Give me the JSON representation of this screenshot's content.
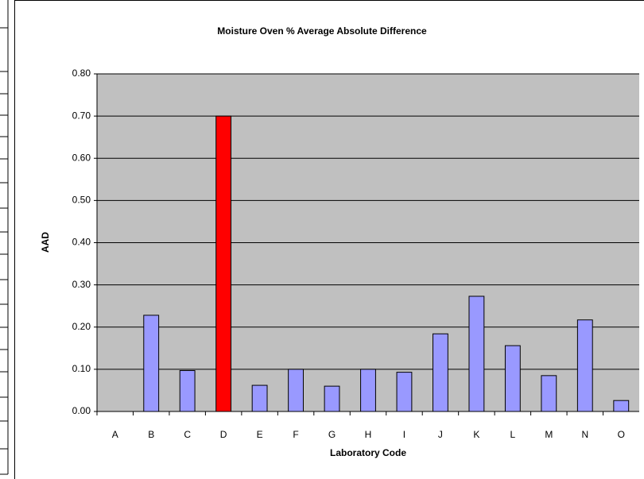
{
  "chart_data": {
    "type": "bar",
    "title": "Moisture Oven % Average Absolute Difference",
    "x_label": "Laboratory Code",
    "y_label": "AAD",
    "categories": [
      "A",
      "B",
      "C",
      "D",
      "E",
      "F",
      "G",
      "H",
      "I",
      "J",
      "K",
      "L",
      "M",
      "N",
      "O"
    ],
    "values": [
      0,
      0.228,
      0.097,
      0.7,
      0.062,
      0.1,
      0.06,
      0.1,
      0.093,
      0.184,
      0.273,
      0.156,
      0.085,
      0.217,
      0.026
    ],
    "colors": [
      "#9999ff",
      "#9999ff",
      "#9999ff",
      "#ff0000",
      "#9999ff",
      "#9999ff",
      "#9999ff",
      "#9999ff",
      "#9999ff",
      "#9999ff",
      "#9999ff",
      "#9999ff",
      "#9999ff",
      "#9999ff",
      "#9999ff"
    ],
    "ylim": [
      0,
      0.8
    ],
    "yticks": [
      {
        "value": 0,
        "label": "0.00"
      },
      {
        "value": 0.1,
        "label": "0.10"
      },
      {
        "value": 0.2,
        "label": "0.20"
      },
      {
        "value": 0.3,
        "label": "0.30"
      },
      {
        "value": 0.4,
        "label": "0.40"
      },
      {
        "value": 0.5,
        "label": "0.50"
      },
      {
        "value": 0.6,
        "label": "0.60"
      },
      {
        "value": 0.7,
        "label": "0.70"
      },
      {
        "value": 0.8,
        "label": "0.80"
      }
    ],
    "grid": true,
    "plot_background": "#c0c0c0"
  }
}
